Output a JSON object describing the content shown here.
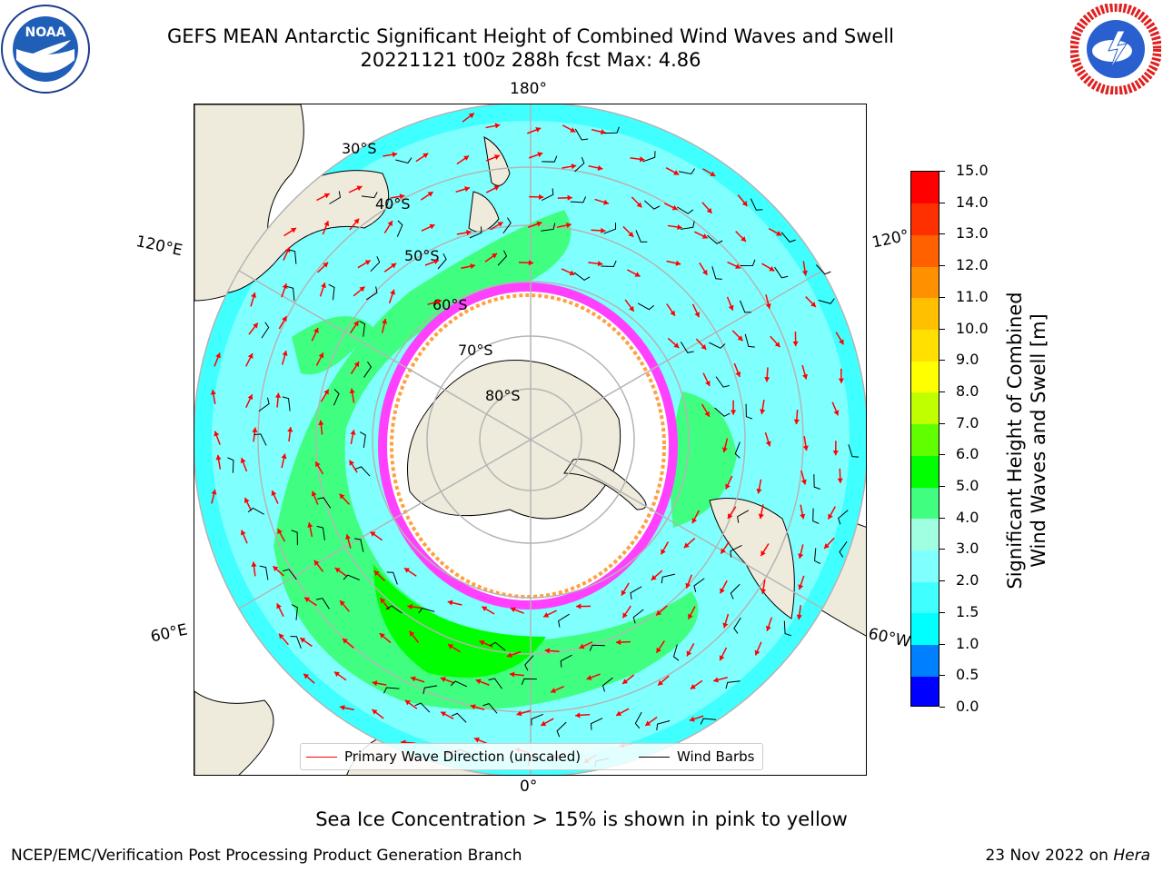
{
  "header": {
    "title_line1": "GEFS MEAN Antarctic Significant Height of Combined Wind Waves and Swell",
    "title_line2": "20221121 t00z 288h fcst   Max: 4.86"
  },
  "logos": {
    "left": "noaa-logo",
    "left_text": "NOAA",
    "right": "national-weather-service-logo"
  },
  "map": {
    "projection": "south-polar-stereographic",
    "longitude_labels": {
      "top": "180°",
      "bottom": "0°",
      "upper_left": "120°E",
      "upper_right": "120°",
      "lower_left": "60°E",
      "lower_right": "60°W"
    },
    "latitude_labels": [
      "30°S",
      "40°S",
      "50°S",
      "60°S",
      "70°S",
      "80°S"
    ],
    "colors": {
      "land": "#efebdc",
      "coast": "#000000",
      "grid": "#b4b4b4",
      "ice_pink": "#ff40ff",
      "ice_orange": "#ffa040",
      "wave_arrow": "#ff0000",
      "wind_barb": "#000000"
    }
  },
  "legend": {
    "wave_label": "Primary Wave Direction (unscaled)",
    "barb_label": "Wind Barbs"
  },
  "colorbar": {
    "label_line1": "Significant Height of Combined",
    "label_line2": "Wind Waves and Swell [m]",
    "ticks": [
      "0.0",
      "0.5",
      "1.0",
      "1.5",
      "2.0",
      "3.0",
      "4.0",
      "5.0",
      "6.0",
      "7.0",
      "8.0",
      "9.0",
      "10.0",
      "11.0",
      "12.0",
      "13.0",
      "14.0",
      "15.0"
    ],
    "colors": [
      "#0000ff",
      "#0080ff",
      "#00ffff",
      "#40ffff",
      "#80ffff",
      "#a0ffe0",
      "#40ff80",
      "#00ff00",
      "#60ff00",
      "#c0ff00",
      "#ffff00",
      "#ffe000",
      "#ffc000",
      "#ff9000",
      "#ff6000",
      "#ff3000",
      "#ff0000"
    ]
  },
  "note": "Sea Ice Concentration > 15% is shown in pink to yellow",
  "footer": {
    "left": "NCEP/EMC/Verification Post Processing Product Generation Branch",
    "right_date": "23 Nov 2022 on",
    "right_host": "Hera"
  }
}
